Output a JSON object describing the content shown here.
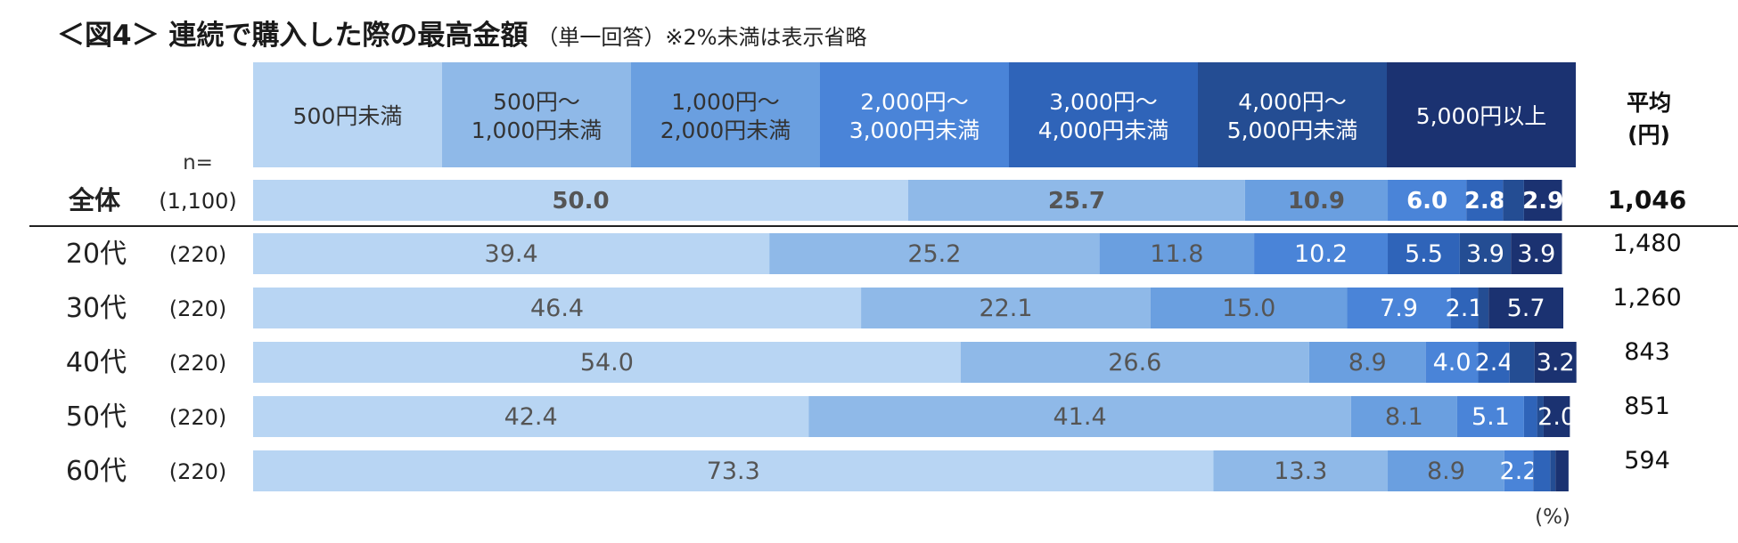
{
  "title": {
    "main": "＜図4＞ 連続で購入した際の最高金額",
    "sub": "（単一回答）※2%未満は表示省略"
  },
  "n_label": "n=",
  "unit_label": "(%)",
  "avg_header": [
    "平均",
    "(円)"
  ],
  "colors": [
    "#b8d5f3",
    "#8fb9e8",
    "#6a9fe0",
    "#4a84d8",
    "#2f64b9",
    "#244d93",
    "#1b3271"
  ],
  "chart_data": {
    "type": "bar",
    "stacked": true,
    "orientation": "horizontal",
    "categories": [
      "全体",
      "20代",
      "30代",
      "40代",
      "50代",
      "60代"
    ],
    "n": [
      "(1,100)",
      "(220)",
      "(220)",
      "(220)",
      "(220)",
      "(220)"
    ],
    "series": [
      {
        "name": "500円未満",
        "values": [
          50.0,
          39.4,
          46.4,
          54.0,
          42.4,
          73.3
        ]
      },
      {
        "name": "500円～\n1,000円未満",
        "values": [
          25.7,
          25.2,
          22.1,
          26.6,
          41.4,
          13.3
        ]
      },
      {
        "name": "1,000円～\n2,000円未満",
        "values": [
          10.9,
          11.8,
          15.0,
          8.9,
          8.1,
          8.9
        ]
      },
      {
        "name": "2,000円～\n3,000円未満",
        "values": [
          6.0,
          10.2,
          7.9,
          4.0,
          5.1,
          2.2
        ]
      },
      {
        "name": "3,000円～\n4,000円未満",
        "values": [
          2.8,
          5.5,
          2.1,
          2.4,
          1.0,
          1.3
        ]
      },
      {
        "name": "4,000円～\n5,000円未満",
        "values": [
          1.6,
          3.9,
          0.8,
          1.9,
          0.5,
          0.4
        ]
      },
      {
        "name": "5,000円以上",
        "values": [
          2.9,
          3.9,
          5.7,
          3.2,
          2.0,
          1.0
        ]
      }
    ],
    "labels": [
      [
        "50.0",
        "25.7",
        "10.9",
        "6.0",
        "2.8",
        "",
        "2.9"
      ],
      [
        "39.4",
        "25.2",
        "11.8",
        "10.2",
        "5.5",
        "3.9",
        "3.9"
      ],
      [
        "46.4",
        "22.1",
        "15.0",
        "7.9",
        "2.1",
        "",
        "5.7"
      ],
      [
        "54.0",
        "26.6",
        "8.9",
        "4.0",
        "2.4",
        "",
        "3.2"
      ],
      [
        "42.4",
        "41.4",
        "8.1",
        "5.1",
        "",
        "",
        "2.0"
      ],
      [
        "73.3",
        "13.3",
        "8.9",
        "2.2",
        "",
        "",
        ""
      ]
    ],
    "averages": [
      "1,046",
      "1,480",
      "1,260",
      "843",
      "851",
      "594"
    ],
    "xlim": [
      0,
      100
    ]
  }
}
